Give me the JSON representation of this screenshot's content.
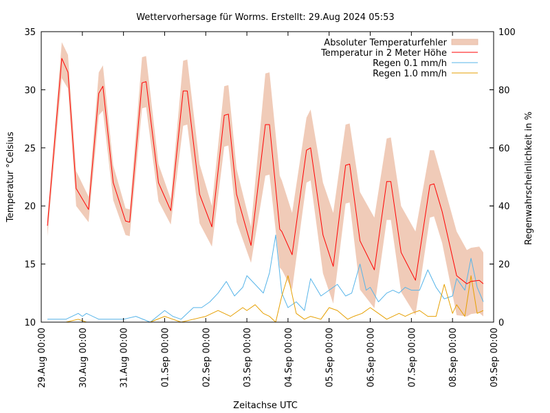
{
  "chart_data": {
    "type": "line",
    "title": "Wettervorhersage für Worms. Erstellt: 29.Aug 2024 05:53",
    "xlabel": "Zeitachse UTC",
    "ylabel": "Temperatur °Celsius",
    "y2label": "Regenwahrscheinlichkeit in %",
    "ylim": [
      10,
      35
    ],
    "y2lim": [
      0,
      100
    ],
    "xlim_days": [
      0,
      11
    ],
    "yticks": [
      "10",
      "15",
      "20",
      "25",
      "30",
      "35"
    ],
    "y2ticks": [
      "0",
      "20",
      "40",
      "60",
      "80",
      "100"
    ],
    "xticks": [
      "29.Aug 00:00",
      "30.Aug 00:00",
      "31.Aug 00:00",
      "01.Sep 00:00",
      "02.Sep 00:00",
      "03.Sep 00:00",
      "04.Sep 00:00",
      "05.Sep 00:00",
      "06.Sep 00:00",
      "07.Sep 00:00",
      "08.Sep 00:00",
      "09.Sep 00:00"
    ],
    "legend_position": "top-right",
    "colors": {
      "temperature": "#ff0000",
      "error_band": "#f0cbb8",
      "rain01": "#56b4e9",
      "rain10": "#e69f00"
    },
    "series": [
      {
        "name": "Temperatur in 2 Meter Höhe",
        "key": "temperature",
        "axis": "left",
        "x_days": [
          0.15,
          0.5,
          0.65,
          0.85,
          1.15,
          1.4,
          1.5,
          1.75,
          2.05,
          2.15,
          2.45,
          2.55,
          2.85,
          3.15,
          3.45,
          3.55,
          3.85,
          4.15,
          4.45,
          4.55,
          4.75,
          5.1,
          5.45,
          5.55,
          5.8,
          5.85,
          6.1,
          6.45,
          6.55,
          6.85,
          7.1,
          7.4,
          7.5,
          7.75,
          8.1,
          8.4,
          8.5,
          8.75,
          9.1,
          9.45,
          9.55,
          9.75,
          10.1,
          10.35,
          10.45,
          10.65,
          10.75
        ],
        "values": [
          18.3,
          32.7,
          31.5,
          21.5,
          19.7,
          29.7,
          30.3,
          22.0,
          18.7,
          18.6,
          30.6,
          30.7,
          22.0,
          19.6,
          29.9,
          29.9,
          21.0,
          18.2,
          27.8,
          27.9,
          21.0,
          16.6,
          27.0,
          27.0,
          18.0,
          17.8,
          15.8,
          24.8,
          25.0,
          17.5,
          14.8,
          23.5,
          23.6,
          17.0,
          14.5,
          22.1,
          22.1,
          16.0,
          13.6,
          21.8,
          21.9,
          19.5,
          14.0,
          13.3,
          13.5,
          13.6,
          13.3
        ]
      },
      {
        "name": "Absoluter Temperaturfehler",
        "key": "error_band",
        "axis": "left",
        "x_days": [
          0.15,
          0.5,
          0.65,
          0.85,
          1.15,
          1.4,
          1.5,
          1.75,
          2.05,
          2.15,
          2.45,
          2.55,
          2.85,
          3.15,
          3.45,
          3.55,
          3.85,
          4.15,
          4.45,
          4.55,
          4.75,
          5.1,
          5.45,
          5.55,
          5.8,
          5.85,
          6.1,
          6.45,
          6.55,
          6.85,
          7.1,
          7.4,
          7.5,
          7.75,
          8.1,
          8.4,
          8.5,
          8.75,
          9.1,
          9.45,
          9.55,
          9.75,
          10.1,
          10.35,
          10.45,
          10.65,
          10.75
        ],
        "upper": [
          19.0,
          34.1,
          33.0,
          23.0,
          20.8,
          31.5,
          32.1,
          23.5,
          19.8,
          19.7,
          32.8,
          32.9,
          23.6,
          20.6,
          32.5,
          32.6,
          23.6,
          20.0,
          30.3,
          30.4,
          23.2,
          18.2,
          31.4,
          31.5,
          22.6,
          22.2,
          19.4,
          27.6,
          28.3,
          22.0,
          19.4,
          27.0,
          27.1,
          21.2,
          19.0,
          25.8,
          25.9,
          20.0,
          17.8,
          24.8,
          24.8,
          22.3,
          17.8,
          16.2,
          16.4,
          16.5,
          16.0
        ],
        "lower": [
          17.4,
          31.0,
          30.1,
          20.0,
          18.6,
          27.8,
          28.2,
          20.5,
          17.5,
          17.4,
          28.4,
          28.5,
          20.4,
          18.4,
          26.9,
          27.0,
          18.5,
          16.5,
          25.1,
          25.2,
          18.6,
          15.1,
          22.6,
          22.7,
          14.7,
          14.5,
          12.8,
          22.0,
          22.2,
          14.2,
          11.6,
          20.2,
          20.3,
          12.8,
          11.2,
          18.8,
          18.8,
          12.6,
          10.6,
          19.0,
          19.1,
          16.8,
          10.6,
          10.5,
          10.7,
          10.8,
          10.5
        ]
      },
      {
        "name": "Regen 0.1 mm/h",
        "key": "rain01",
        "axis": "right",
        "x_days": [
          0.15,
          0.6,
          0.9,
          1.0,
          1.1,
          1.4,
          1.6,
          2.0,
          2.3,
          2.65,
          3.0,
          3.2,
          3.4,
          3.7,
          3.9,
          4.1,
          4.3,
          4.5,
          4.7,
          4.9,
          5.0,
          5.2,
          5.4,
          5.55,
          5.7,
          5.85,
          6.0,
          6.2,
          6.4,
          6.55,
          6.8,
          7.0,
          7.2,
          7.4,
          7.55,
          7.75,
          7.9,
          8.0,
          8.2,
          8.4,
          8.55,
          8.7,
          8.85,
          9.0,
          9.2,
          9.4,
          9.6,
          9.8,
          10.0,
          10.1,
          10.3,
          10.45,
          10.6,
          10.75
        ],
        "values": [
          1,
          1,
          3,
          2,
          3,
          1,
          1,
          1,
          2,
          0,
          4,
          2,
          1,
          5,
          5,
          7,
          10,
          14,
          9,
          12,
          16,
          13,
          10,
          17,
          30,
          10,
          5,
          7,
          4,
          15,
          9,
          11,
          13,
          9,
          10,
          20,
          11,
          12,
          7,
          10,
          11,
          10,
          12,
          11,
          11,
          18,
          12,
          8,
          9,
          15,
          11,
          22,
          12,
          7
        ]
      },
      {
        "name": "Regen 1.0 mm/h",
        "key": "rain10",
        "axis": "right",
        "x_days": [
          0.15,
          0.6,
          0.9,
          1.1,
          1.4,
          2.0,
          2.3,
          2.65,
          3.0,
          3.2,
          3.4,
          3.7,
          4.0,
          4.3,
          4.6,
          4.9,
          5.0,
          5.2,
          5.4,
          5.55,
          5.7,
          5.85,
          6.0,
          6.2,
          6.4,
          6.55,
          6.8,
          7.0,
          7.2,
          7.45,
          7.6,
          7.8,
          8.0,
          8.2,
          8.4,
          8.55,
          8.7,
          8.85,
          9.0,
          9.2,
          9.4,
          9.6,
          9.8,
          10.0,
          10.1,
          10.3,
          10.45,
          10.6,
          10.75
        ],
        "values": [
          0,
          0,
          1,
          0,
          0,
          0,
          0,
          0,
          2,
          1,
          0,
          1,
          2,
          4,
          2,
          5,
          4,
          6,
          3,
          2,
          0,
          9,
          16,
          3,
          1,
          2,
          1,
          5,
          4,
          1,
          2,
          3,
          5,
          3,
          1,
          2,
          3,
          2,
          3,
          4,
          2,
          2,
          13,
          3,
          6,
          2,
          16,
          3,
          4
        ]
      }
    ]
  }
}
